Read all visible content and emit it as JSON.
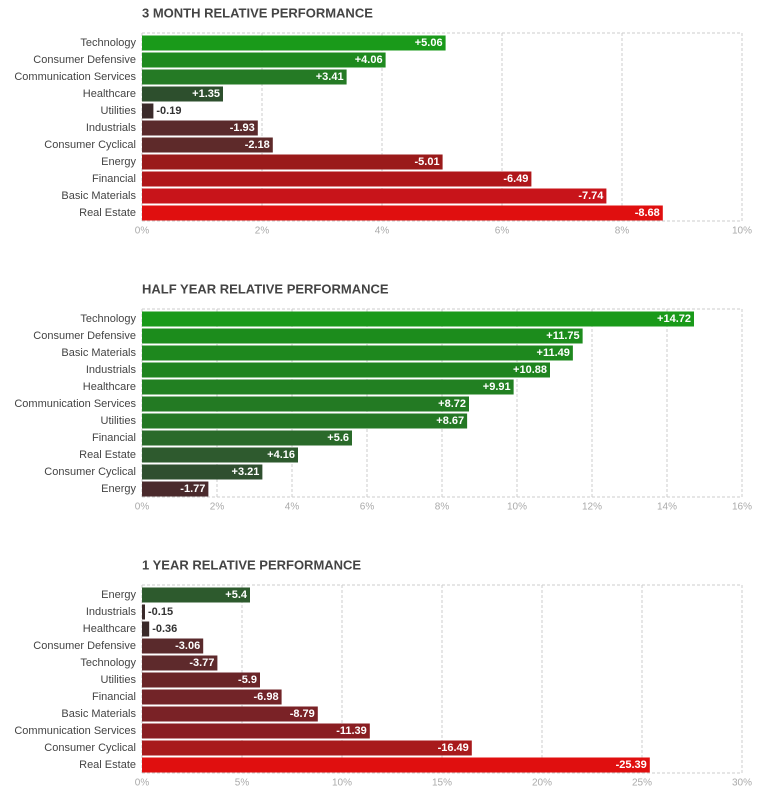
{
  "chart_data": [
    {
      "type": "hbar",
      "title": "3 MONTH RELATIVE PERFORMANCE",
      "categories": [
        "Technology",
        "Consumer Defensive",
        "Communication Services",
        "Healthcare",
        "Utilities",
        "Industrials",
        "Consumer Cyclical",
        "Energy",
        "Financial",
        "Basic Materials",
        "Real Estate"
      ],
      "values": [
        5.06,
        4.06,
        3.41,
        1.35,
        -0.19,
        -1.93,
        -2.18,
        -5.01,
        -6.49,
        -7.74,
        -8.68
      ],
      "value_labels": [
        "+5.06",
        "+4.06",
        "+3.41",
        "+1.35",
        "-0.19",
        "-1.93",
        "-2.18",
        "-5.01",
        "-6.49",
        "-7.74",
        "-8.68"
      ],
      "colors": [
        "#1a9a1a",
        "#1f8a1f",
        "#257a25",
        "#2d4f2d",
        "#3a2a2a",
        "#5a2a2c",
        "#5e2a2a",
        "#9a1a1a",
        "#b0171a",
        "#c8141a",
        "#e00f0f"
      ],
      "xlim": [
        0,
        10
      ],
      "xticks": [
        {
          "value": 0,
          "label": "0%"
        },
        {
          "value": 2,
          "label": "2%"
        },
        {
          "value": 4,
          "label": "4%"
        },
        {
          "value": 6,
          "label": "6%"
        },
        {
          "value": 8,
          "label": "8%"
        },
        {
          "value": 10,
          "label": "10%"
        }
      ],
      "grid": true
    },
    {
      "type": "hbar",
      "title": "HALF YEAR RELATIVE PERFORMANCE",
      "categories": [
        "Technology",
        "Consumer Defensive",
        "Basic Materials",
        "Industrials",
        "Healthcare",
        "Communication Services",
        "Utilities",
        "Financial",
        "Real Estate",
        "Consumer Cyclical",
        "Energy"
      ],
      "values": [
        14.72,
        11.75,
        11.49,
        10.88,
        9.91,
        8.72,
        8.67,
        5.6,
        4.16,
        3.21,
        -1.77
      ],
      "value_labels": [
        "+14.72",
        "+11.75",
        "+11.49",
        "+10.88",
        "+9.91",
        "+8.72",
        "+8.67",
        "+5.6",
        "+4.16",
        "+3.21",
        "-1.77"
      ],
      "colors": [
        "#1a9a1a",
        "#1c8c1c",
        "#1e881e",
        "#1f841f",
        "#228022",
        "#237a23",
        "#247824",
        "#2a6a2a",
        "#2e5a2e",
        "#2f4f2f",
        "#4a2a2c"
      ],
      "xlim": [
        0,
        16
      ],
      "xticks": [
        {
          "value": 0,
          "label": "0%"
        },
        {
          "value": 2,
          "label": "2%"
        },
        {
          "value": 4,
          "label": "4%"
        },
        {
          "value": 6,
          "label": "6%"
        },
        {
          "value": 8,
          "label": "8%"
        },
        {
          "value": 10,
          "label": "10%"
        },
        {
          "value": 12,
          "label": "12%"
        },
        {
          "value": 14,
          "label": "14%"
        },
        {
          "value": 16,
          "label": "16%"
        }
      ],
      "grid": true
    },
    {
      "type": "hbar",
      "title": "1 YEAR RELATIVE PERFORMANCE",
      "categories": [
        "Energy",
        "Industrials",
        "Healthcare",
        "Consumer Defensive",
        "Technology",
        "Utilities",
        "Financial",
        "Basic Materials",
        "Communication Services",
        "Consumer Cyclical",
        "Real Estate"
      ],
      "values": [
        5.4,
        -0.15,
        -0.36,
        -3.06,
        -3.77,
        -5.9,
        -6.98,
        -8.79,
        -11.39,
        -16.49,
        -25.39
      ],
      "value_labels": [
        "+5.4",
        "-0.15",
        "-0.36",
        "-3.06",
        "-3.77",
        "-5.9",
        "-6.98",
        "-8.79",
        "-11.39",
        "-16.49",
        "-25.39"
      ],
      "colors": [
        "#2d5a2d",
        "#3a2a2a",
        "#3a2a2a",
        "#5a2a2c",
        "#5e2a2c",
        "#6a2528",
        "#722428",
        "#7a2226",
        "#8a1e22",
        "#a81a1c",
        "#e00f0f"
      ],
      "xlim": [
        0,
        30
      ],
      "xticks": [
        {
          "value": 0,
          "label": "0%"
        },
        {
          "value": 5,
          "label": "5%"
        },
        {
          "value": 10,
          "label": "10%"
        },
        {
          "value": 15,
          "label": "15%"
        },
        {
          "value": 20,
          "label": "20%"
        },
        {
          "value": 25,
          "label": "25%"
        },
        {
          "value": 30,
          "label": "30%"
        }
      ],
      "grid": true
    }
  ]
}
